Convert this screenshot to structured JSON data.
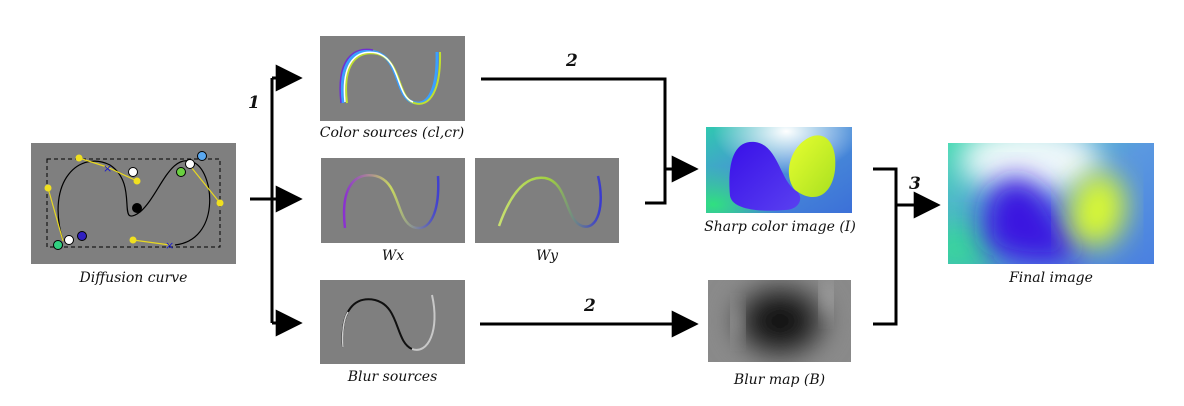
{
  "diagram": {
    "panels": {
      "diffusion_curve": "Diffusion curve",
      "color_sources": "Color sources (cl,cr)",
      "wx": "Wx",
      "wy": "Wy",
      "blur_sources": "Blur sources",
      "sharp_color": "Sharp color image (I)",
      "blur_map": "Blur map (B)",
      "final_image": "Final image"
    },
    "steps": {
      "step1": "1",
      "step2_color": "2",
      "step2_blur": "2",
      "step3": "3"
    }
  },
  "colors": {
    "panel_gray": "#7f7f7f",
    "arrow": "#000000",
    "control_yellow": "#f0e020",
    "control_blue": "#2a2ad0",
    "sharp_bg": "#4a80d8",
    "sharp_left": "#4010e0",
    "sharp_right": "#c8f020"
  }
}
